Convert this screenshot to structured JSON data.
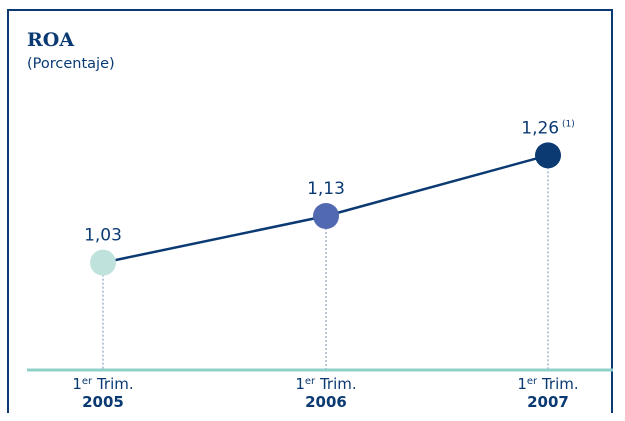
{
  "chart_data": {
    "type": "line",
    "title": "ROA",
    "subtitle": "(Porcentaje)",
    "categories": [
      {
        "prefix": "1",
        "sup": "er",
        "trim": "Trim.",
        "year": "2005"
      },
      {
        "prefix": "1",
        "sup": "er",
        "trim": "Trim.",
        "year": "2006"
      },
      {
        "prefix": "1",
        "sup": "er",
        "trim": "Trim.",
        "year": "2007"
      }
    ],
    "values": [
      1.03,
      1.13,
      1.26
    ],
    "value_labels": [
      "1,03",
      "1,13",
      "1,26"
    ],
    "footnote_marks": [
      "",
      "",
      "(1)"
    ],
    "point_colors": [
      "#bfe3dc",
      "#5169b0",
      "#0b3a73"
    ],
    "line_color": "#0b3a73",
    "baseline_color": "#8fd0c8",
    "ylim": [
      0.8,
      1.34
    ]
  }
}
